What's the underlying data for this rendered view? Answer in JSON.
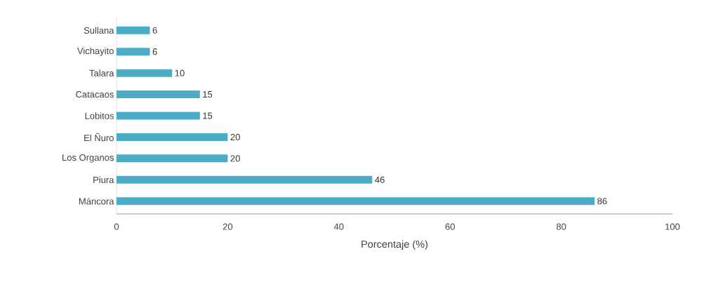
{
  "chart_data": {
    "type": "bar",
    "orientation": "horizontal",
    "xlabel": "Porcentaje (%)",
    "categories": [
      "Sullana",
      "Vichayito",
      "Talara",
      "Catacaos",
      "Lobitos",
      "El Ñuro",
      "Los Organos",
      "Piura",
      "Máncora"
    ],
    "values": [
      6,
      6,
      10,
      15,
      15,
      20,
      20,
      46,
      86
    ],
    "color": "#4bacc6",
    "xlim": [
      0,
      100
    ],
    "xticks": [
      0,
      20,
      40,
      60,
      80,
      100
    ],
    "data_labels": true,
    "grid": false
  }
}
